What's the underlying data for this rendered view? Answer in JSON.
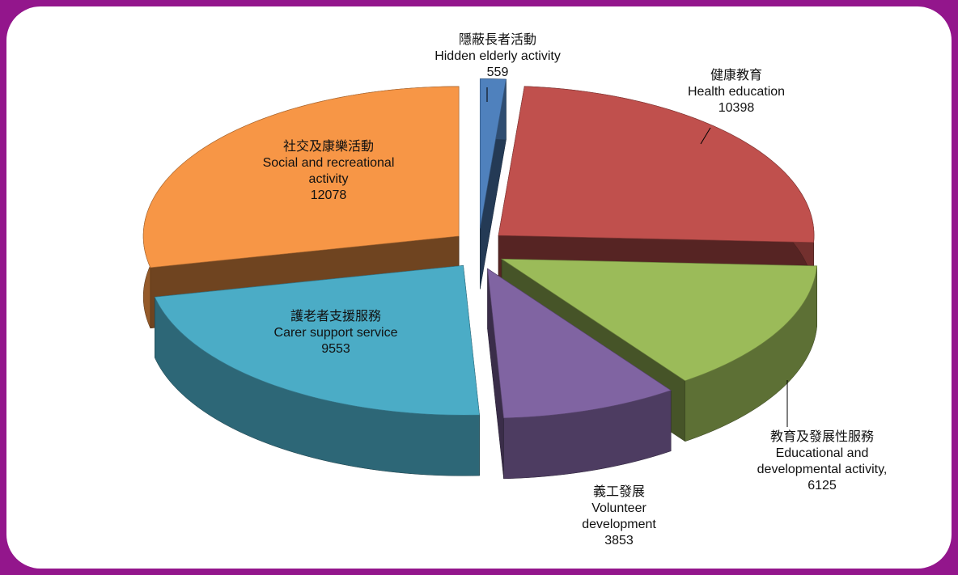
{
  "chart_data": {
    "type": "pie3d",
    "categories": [
      "Hidden elderly activity",
      "Health education",
      "Educational and developmental activity,",
      "Volunteer development",
      "Carer support service",
      "Social and recreational activity"
    ],
    "categories_zh": [
      "隱蔽長者活動",
      "健康教育",
      "教育及發展性服務",
      "義工發展",
      "護老者支援服務",
      "社交及康樂活動"
    ],
    "values": [
      559,
      10398,
      6125,
      3853,
      9553,
      12078
    ],
    "colors": [
      "#4f81bd",
      "#c0504d",
      "#9bbb59",
      "#8064a2",
      "#4bacc6",
      "#f79646"
    ]
  }
}
